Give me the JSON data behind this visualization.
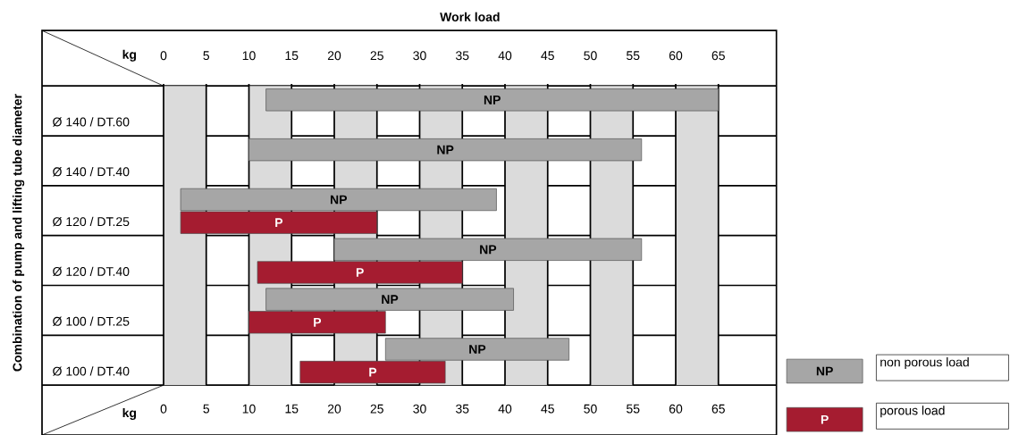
{
  "chart_data": {
    "type": "bar",
    "orientation": "horizontal",
    "title": "Work load",
    "xlabel": "kg",
    "x2label": "kg",
    "ylabel": "Combination of pump and lifting tube diameter",
    "categories": [
      "Ø 140 / DT.60",
      "Ø 140 / DT.40",
      "Ø 120 / DT.25",
      "Ø 120 / DT.40",
      "Ø 100 / DT.25",
      "Ø 100 / DT.40"
    ],
    "xlim": [
      0,
      71.8
    ],
    "xticks": [
      0,
      5,
      10,
      15,
      20,
      25,
      30,
      35,
      40,
      45,
      50,
      55,
      60,
      65
    ],
    "x2lim": [
      0,
      71.8
    ],
    "x2ticks": [
      0,
      5,
      10,
      15,
      20,
      25,
      30,
      35,
      40,
      45,
      50,
      55,
      60,
      65
    ],
    "series": [
      {
        "name": "non porous load",
        "color": "#a6a6a6",
        "base": [
          12,
          10,
          2,
          20,
          12,
          26
        ],
        "values": [
          53,
          46,
          37,
          36,
          29,
          21.5
        ],
        "value_labels": [
          "NP",
          "NP",
          "NP",
          "NP",
          "NP",
          "NP"
        ]
      },
      {
        "name": "porous load",
        "color": "#a51c30",
        "base": [
          null,
          null,
          2,
          11,
          10,
          16
        ],
        "values": [
          null,
          null,
          23,
          24,
          16,
          17
        ],
        "value_labels": [
          null,
          null,
          "P",
          "P",
          "P",
          "P"
        ]
      }
    ],
    "bands": [
      {
        "axis": "x",
        "from": 0,
        "to": 5
      },
      {
        "axis": "x",
        "from": 10,
        "to": 15
      },
      {
        "axis": "x",
        "from": 20,
        "to": 25
      },
      {
        "axis": "x",
        "from": 30,
        "to": 35
      },
      {
        "axis": "x",
        "from": 40,
        "to": 45
      },
      {
        "axis": "x",
        "from": 50,
        "to": 55
      },
      {
        "axis": "x",
        "from": 60,
        "to": 65
      }
    ],
    "grid": "x",
    "legend": "bottom right"
  }
}
